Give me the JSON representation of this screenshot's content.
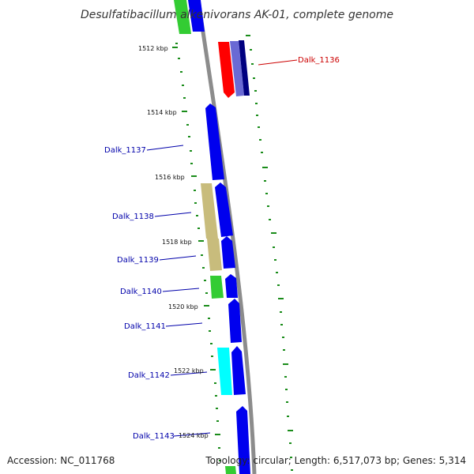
{
  "title": "Desulfatibacillum alkenivorans AK-01, complete genome",
  "accession": "Accession: NC_011768",
  "summary": "Topology: circular; Length: 6,517,073 bp; Genes: 5,314",
  "colors": {
    "backbone": "#8c8c8c",
    "tick": "#1a8c1a",
    "label_blue": "#0000aa",
    "label_red": "#cc0000",
    "cds_blue": "#0000ee",
    "cds_navy": "#000080",
    "cds_periwinkle": "#6a6ad4",
    "cds_red": "#ff0000",
    "cds_green": "#33cc33",
    "cds_khaki": "#c8bc7c",
    "cds_cyan": "#00ffff"
  },
  "tick_labels": [
    "1512 kbp",
    "1514 kbp",
    "1516 kbp",
    "1518 kbp",
    "1520 kbp",
    "1522 kbp",
    "1524 kbp"
  ],
  "gene_labels": [
    {
      "text": "Dalk_1136",
      "color": "red"
    },
    {
      "text": "Dalk_1137",
      "color": "blue"
    },
    {
      "text": "Dalk_1138",
      "color": "blue"
    },
    {
      "text": "Dalk_1139",
      "color": "blue"
    },
    {
      "text": "Dalk_1140",
      "color": "blue"
    },
    {
      "text": "Dalk_1141",
      "color": "blue"
    },
    {
      "text": "Dalk_1142",
      "color": "blue"
    },
    {
      "text": "Dalk_1143",
      "color": "blue"
    }
  ]
}
